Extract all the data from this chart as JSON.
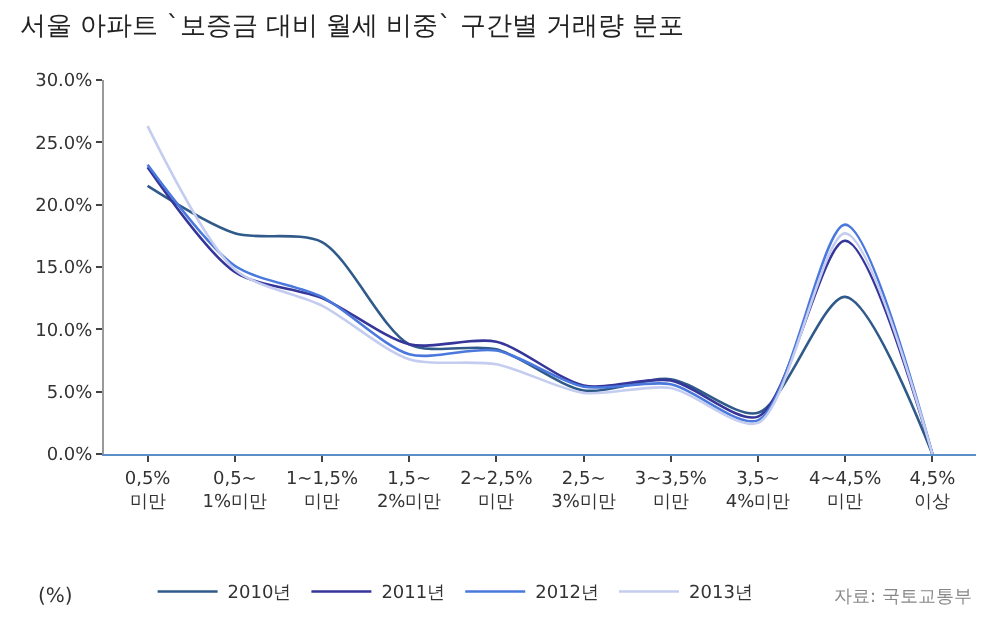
{
  "chart_data": {
    "type": "line",
    "title": "서울 아파트 `보증금 대비 월세 비중` 구간별 거래량 분포",
    "categories": [
      "0,5%\n미만",
      "0,5~\n1%미만",
      "1~1,5%\n미만",
      "1,5~\n2%미만",
      "2~2,5%\n미만",
      "2,5~\n3%미만",
      "3~3,5%\n미만",
      "3,5~\n4%미만",
      "4~4,5%\n미만",
      "4,5%\n이상"
    ],
    "series": [
      {
        "name": "2010년",
        "color": "#2f5a8a",
        "values": [
          21.5,
          17.7,
          17.0,
          8.8,
          8.4,
          5.1,
          6.0,
          3.3,
          12.6,
          0
        ]
      },
      {
        "name": "2011년",
        "color": "#35359a",
        "values": [
          23.0,
          14.6,
          12.5,
          8.8,
          9.0,
          5.5,
          5.9,
          3.0,
          17.1,
          0
        ]
      },
      {
        "name": "2012년",
        "color": "#4a78dc",
        "values": [
          23.2,
          15.1,
          12.6,
          8.0,
          8.3,
          5.4,
          5.6,
          2.7,
          18.4,
          0
        ]
      },
      {
        "name": "2013년",
        "color": "#c4cdf0",
        "values": [
          26.3,
          14.8,
          11.9,
          7.6,
          7.2,
          4.9,
          5.3,
          2.5,
          17.7,
          0
        ]
      }
    ],
    "ylim": [
      0,
      30
    ],
    "yticks": [
      {
        "value": 0,
        "label": "0.0%"
      },
      {
        "value": 5,
        "label": "5.0%"
      },
      {
        "value": 10,
        "label": "10.0%"
      },
      {
        "value": 15,
        "label": "15.0%"
      },
      {
        "value": 20,
        "label": "20.0%"
      },
      {
        "value": 25,
        "label": "25.0%"
      },
      {
        "value": 30,
        "label": "30.0%"
      }
    ],
    "legend": "bottom",
    "marker": "none",
    "line_style": "solid",
    "annotations": [
      "(%)",
      "자료: 국토교통부"
    ]
  }
}
